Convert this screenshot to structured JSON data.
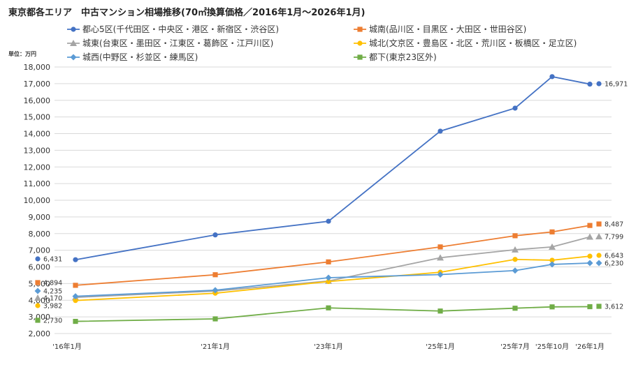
{
  "chart_data": {
    "type": "line",
    "title": "東京都各エリア　中古マンション相場推移(70㎡換算価格／2016年1月～2026年1月)",
    "ylabel": "単位：万円",
    "xlabel": "",
    "ylim": [
      2000,
      18000
    ],
    "ytick_step": 1000,
    "grid": true,
    "legend_position": "top",
    "x_labels": [
      "'16年1月",
      "'21年1月",
      "'23年1月",
      "'25年1月",
      "'25年7月",
      "'25年10月",
      "'26年1月"
    ],
    "series": [
      {
        "name": "都心5区(千代田区・中央区・港区・新宿区・渋谷区)",
        "color": "#4472c4",
        "marker": "circle",
        "values": [
          6431,
          7920,
          8740,
          14150,
          15530,
          17420,
          16971
        ],
        "start_label": "6,431",
        "end_label": "16,971"
      },
      {
        "name": "城南(品川区・目黒区・大田区・世田谷区)",
        "color": "#ed7d31",
        "marker": "square",
        "values": [
          4894,
          5530,
          6300,
          7200,
          7870,
          8100,
          8487
        ],
        "start_label": "4,894",
        "end_label": "8,487"
      },
      {
        "name": "城東(台東区・墨田区・江東区・葛飾区・江戸川区)",
        "color": "#a5a5a5",
        "marker": "triangle",
        "values": [
          4170,
          4550,
          5150,
          6550,
          7030,
          7200,
          7799
        ],
        "start_label": "4,170",
        "end_label": "7,799"
      },
      {
        "name": "城北(文京区・豊島区・北区・荒川区・板橋区・足立区)",
        "color": "#ffc000",
        "marker": "circle",
        "values": [
          3982,
          4420,
          5120,
          5680,
          6450,
          6400,
          6643
        ],
        "start_label": "3,982",
        "end_label": "6,643"
      },
      {
        "name": "城西(中野区・杉並区・練馬区)",
        "color": "#5b9bd5",
        "marker": "diamond",
        "values": [
          4235,
          4600,
          5350,
          5540,
          5780,
          6150,
          6230
        ],
        "start_label": "4,235",
        "end_label": "6,230"
      },
      {
        "name": "都下(東京23区外)",
        "color": "#70ad47",
        "marker": "square",
        "values": [
          2730,
          2880,
          3540,
          3350,
          3520,
          3600,
          3612
        ],
        "start_label": "2,730",
        "end_label": "3,612"
      }
    ]
  }
}
